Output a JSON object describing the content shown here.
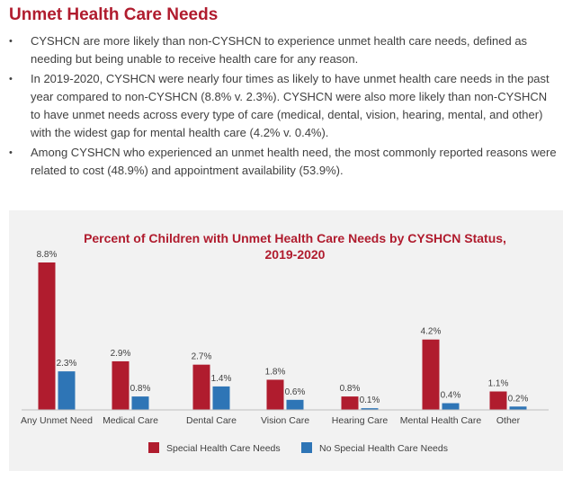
{
  "heading": "Unmet Health Care Needs",
  "bullets": [
    "CYSHCN are more likely than non-CYSHCN to experience unmet health care needs, defined as needing but being unable to receive health care for any reason.",
    "In 2019-2020, CYSHCN were nearly four times as likely to have unmet health care needs in the past year compared to non-CYSHCN (8.8% v. 2.3%).  CYSHCN were also more likely than non-CYSHCN to have unmet needs across every type of care (medical, dental, vision, hearing, mental, and other) with the widest gap for mental health care (4.2% v. 0.4%).",
    "Among CYSHCN who experienced an unmet health need, the most commonly reported reasons were related to cost (48.9%) and appointment availability (53.9%)."
  ],
  "bullet_symbol": "•",
  "chart_data": {
    "type": "bar",
    "title_line1": "Percent of Children with Unmet Health Care Needs by CYSHCN Status,",
    "title_line2": "2019-2020",
    "categories": [
      "Any Unmet Need",
      "Medical Care",
      "Dental Care",
      "Vision Care",
      "Hearing Care",
      "Mental Health Care",
      "Other"
    ],
    "series": [
      {
        "name": "Special Health Care Needs",
        "color": "#b01c2e",
        "values": [
          8.8,
          2.9,
          2.7,
          1.8,
          0.8,
          4.2,
          1.1
        ],
        "labels": [
          "8.8%",
          "2.9%",
          "2.7%",
          "1.8%",
          "0.8%",
          "4.2%",
          "1.1%"
        ]
      },
      {
        "name": "No Special Health Care Needs",
        "color": "#2e75b6",
        "values": [
          2.3,
          0.8,
          1.4,
          0.6,
          0.1,
          0.4,
          0.2
        ],
        "labels": [
          "2.3%",
          "0.8%",
          "1.4%",
          "0.6%",
          "0.1%",
          "0.4%",
          "0.2%"
        ]
      }
    ],
    "ylim": [
      0,
      8.8
    ],
    "grid": false,
    "legend_position": "bottom"
  }
}
